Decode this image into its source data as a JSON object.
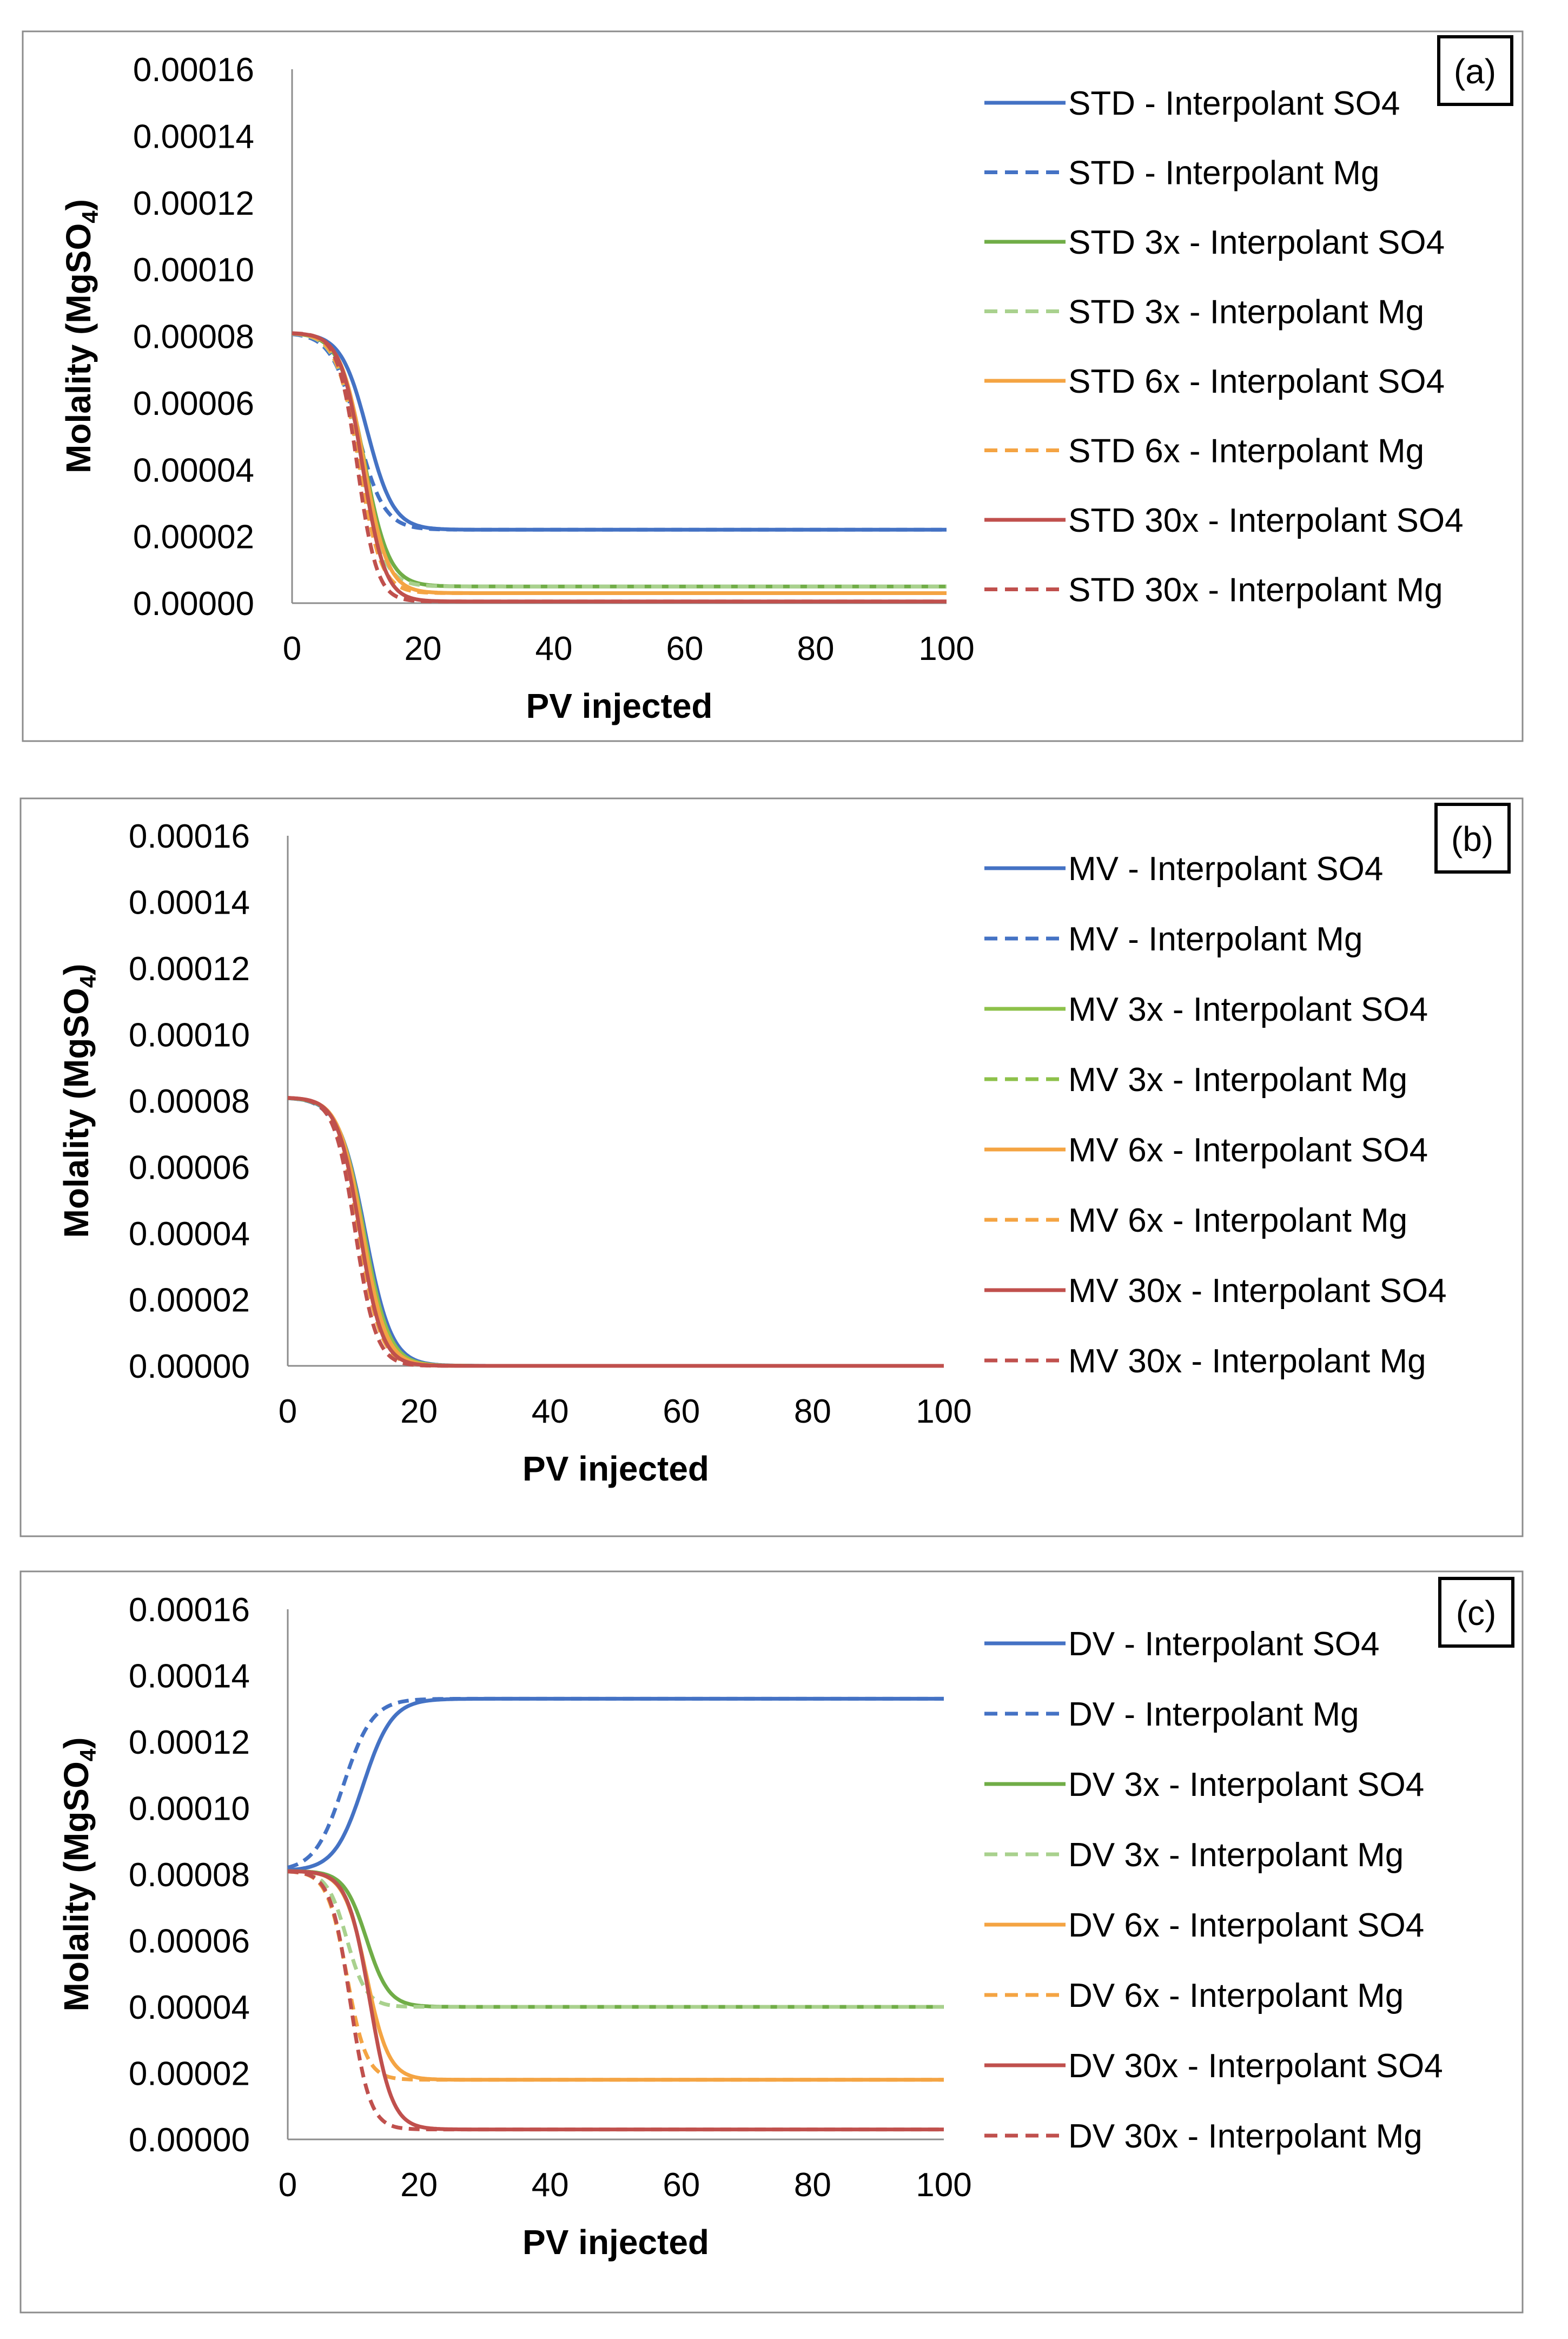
{
  "chart_data": [
    {
      "type": "line",
      "panel_label": "(a)",
      "xlabel": "PV injected",
      "ylabel": "Molality (MgSO4)",
      "xlim": [
        0,
        100
      ],
      "ylim": [
        0,
        0.00016
      ],
      "xticks": [
        0,
        20,
        40,
        60,
        80,
        100
      ],
      "xtick_labels": [
        "0",
        "20",
        "40",
        "60",
        "80",
        "100"
      ],
      "yticks": [
        0,
        2e-05,
        4e-05,
        6e-05,
        8e-05,
        0.0001,
        0.00012,
        0.00014,
        0.00016
      ],
      "ytick_labels": [
        "0.00000",
        "0.00002",
        "0.00004",
        "0.00006",
        "0.00008",
        "0.00010",
        "0.00012",
        "0.00014",
        "0.00016"
      ],
      "grid": false,
      "legend_position": "right",
      "series": [
        {
          "name": "STD - Interpolant SO4",
          "color": "#4472C4",
          "dash": false,
          "start": 8.1e-05,
          "end": 2.2e-05,
          "mid": 11.5,
          "width": 2.0,
          "x_from": 0
        },
        {
          "name": "STD - Interpolant Mg",
          "color": "#4472C4",
          "dash": true,
          "start": 8.1e-05,
          "end": 2.2e-05,
          "mid": 10.0,
          "width": 2.0,
          "x_from": 0
        },
        {
          "name": "STD 3x - Interpolant SO4",
          "color": "#70AD47",
          "dash": false,
          "start": 8.1e-05,
          "end": 5e-06,
          "mid": 11.0,
          "width": 1.9,
          "x_from": 0
        },
        {
          "name": "STD 3x - Interpolant Mg",
          "color": "#A9D18E",
          "dash": true,
          "start": 8.1e-05,
          "end": 5e-06,
          "mid": 10.3,
          "width": 1.8,
          "x_from": 0
        },
        {
          "name": "STD 6x - Interpolant SO4",
          "color": "#F4A443",
          "dash": false,
          "start": 8.1e-05,
          "end": 3e-06,
          "mid": 11.0,
          "width": 1.8,
          "x_from": 0
        },
        {
          "name": "STD 6x - Interpolant Mg",
          "color": "#F4A443",
          "dash": true,
          "start": 8.1e-05,
          "end": 3e-06,
          "mid": 10.2,
          "width": 1.7,
          "x_from": 0
        },
        {
          "name": "STD 30x - Interpolant SO4",
          "color": "#C0504D",
          "dash": false,
          "start": 8.1e-05,
          "end": 5e-07,
          "mid": 10.8,
          "width": 1.7,
          "x_from": 0
        },
        {
          "name": "STD 30x - Interpolant Mg",
          "color": "#C0504D",
          "dash": true,
          "start": 8.1e-05,
          "end": 5e-07,
          "mid": 10.0,
          "width": 1.5,
          "x_from": 0
        }
      ]
    },
    {
      "type": "line",
      "panel_label": "(b)",
      "xlabel": "PV injected",
      "ylabel": "Molality (MgSO4)",
      "xlim": [
        0,
        100
      ],
      "ylim": [
        0,
        0.00016
      ],
      "xticks": [
        0,
        20,
        40,
        60,
        80,
        100
      ],
      "xtick_labels": [
        "0",
        "20",
        "40",
        "60",
        "80",
        "100"
      ],
      "yticks": [
        0,
        2e-05,
        4e-05,
        6e-05,
        8e-05,
        0.0001,
        0.00012,
        0.00014,
        0.00016
      ],
      "ytick_labels": [
        "0.00000",
        "0.00002",
        "0.00004",
        "0.00006",
        "0.00008",
        "0.00010",
        "0.00012",
        "0.00014",
        "0.00016"
      ],
      "grid": false,
      "legend_position": "right",
      "series": [
        {
          "name": "MV - Interpolant SO4",
          "color": "#4472C4",
          "dash": false,
          "start": 8.1e-05,
          "end": 0.0,
          "mid": 11.8,
          "width": 2.0,
          "x_from": 0
        },
        {
          "name": "MV - Interpolant Mg",
          "color": "#4472C4",
          "dash": true,
          "start": 8.1e-05,
          "end": 0.0,
          "mid": 11.2,
          "width": 1.9,
          "x_from": 0
        },
        {
          "name": "MV 3x - Interpolant SO4",
          "color": "#8DC14A",
          "dash": false,
          "start": 8.1e-05,
          "end": 0.0,
          "mid": 11.6,
          "width": 1.9,
          "x_from": 0
        },
        {
          "name": "MV 3x - Interpolant Mg",
          "color": "#8DC14A",
          "dash": true,
          "start": 8.1e-05,
          "end": 0.0,
          "mid": 11.0,
          "width": 1.8,
          "x_from": 0
        },
        {
          "name": "MV 6x - Interpolant SO4",
          "color": "#F4A443",
          "dash": false,
          "start": 8.1e-05,
          "end": 0.0,
          "mid": 11.4,
          "width": 1.8,
          "x_from": 0
        },
        {
          "name": "MV 6x - Interpolant Mg",
          "color": "#F4A443",
          "dash": true,
          "start": 8.1e-05,
          "end": 0.0,
          "mid": 10.8,
          "width": 1.7,
          "x_from": 0
        },
        {
          "name": "MV 30x - Interpolant SO4",
          "color": "#C0504D",
          "dash": false,
          "start": 8.1e-05,
          "end": 0.0,
          "mid": 11.0,
          "width": 1.7,
          "x_from": 0
        },
        {
          "name": "MV 30x - Interpolant Mg",
          "color": "#C0504D",
          "dash": true,
          "start": 8.1e-05,
          "end": 0.0,
          "mid": 10.3,
          "width": 1.6,
          "x_from": 0
        }
      ]
    },
    {
      "type": "line",
      "panel_label": "(c)",
      "xlabel": "PV injected",
      "ylabel": "Molality (MgSO4)",
      "xlim": [
        0,
        100
      ],
      "ylim": [
        0,
        0.00016
      ],
      "xticks": [
        0,
        20,
        40,
        60,
        80,
        100
      ],
      "xtick_labels": [
        "0",
        "20",
        "40",
        "60",
        "80",
        "100"
      ],
      "yticks": [
        0,
        2e-05,
        4e-05,
        6e-05,
        8e-05,
        0.0001,
        0.00012,
        0.00014,
        0.00016
      ],
      "ytick_labels": [
        "0.00000",
        "0.00002",
        "0.00004",
        "0.00006",
        "0.00008",
        "0.00010",
        "0.00012",
        "0.00014",
        "0.00016"
      ],
      "grid": false,
      "legend_position": "right",
      "series": [
        {
          "name": "DV - Interpolant SO4",
          "color": "#4472C4",
          "dash": false,
          "start": 8.1e-05,
          "end": 0.000133,
          "mid": 11.5,
          "width": 2.2,
          "x_from": 0
        },
        {
          "name": "DV - Interpolant Mg",
          "color": "#4472C4",
          "dash": true,
          "start": 8.1e-05,
          "end": 0.000133,
          "mid": 8.5,
          "width": 2.2,
          "x_from": 0
        },
        {
          "name": "DV 3x - Interpolant SO4",
          "color": "#70AD47",
          "dash": false,
          "start": 8.1e-05,
          "end": 4e-05,
          "mid": 12.0,
          "width": 1.7,
          "x_from": 0
        },
        {
          "name": "DV 3x - Interpolant Mg",
          "color": "#A9D18E",
          "dash": true,
          "start": 8.1e-05,
          "end": 4e-05,
          "mid": 9.0,
          "width": 1.5,
          "x_from": 0
        },
        {
          "name": "DV 6x - Interpolant SO4",
          "color": "#F4A443",
          "dash": false,
          "start": 8.1e-05,
          "end": 1.8e-05,
          "mid": 12.0,
          "width": 1.7,
          "x_from": 0
        },
        {
          "name": "DV 6x - Interpolant Mg",
          "color": "#F4A443",
          "dash": true,
          "start": 8.1e-05,
          "end": 1.8e-05,
          "mid": 9.0,
          "width": 1.5,
          "x_from": 0
        },
        {
          "name": "DV 30x - Interpolant SO4",
          "color": "#C0504D",
          "dash": false,
          "start": 8.1e-05,
          "end": 3e-06,
          "mid": 12.5,
          "width": 1.7,
          "x_from": 0
        },
        {
          "name": "DV 30x - Interpolant Mg",
          "color": "#C0504D",
          "dash": true,
          "start": 8.1e-05,
          "end": 3e-06,
          "mid": 9.5,
          "width": 1.5,
          "x_from": 0
        }
      ]
    }
  ]
}
